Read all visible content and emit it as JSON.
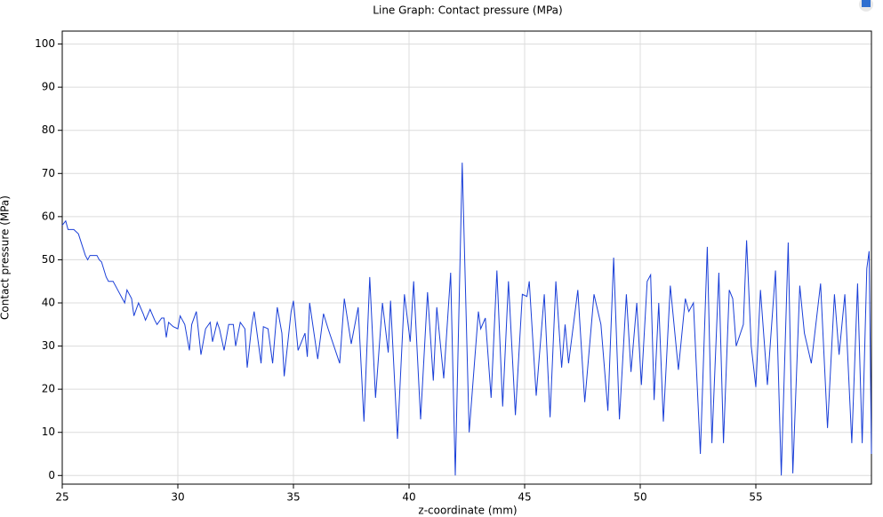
{
  "chart_data": {
    "type": "line",
    "title": "Line Graph: Contact pressure (MPa)",
    "x_label": "z-coordinate (mm)",
    "y_label": "Contact pressure (MPa)",
    "xlim": [
      25,
      60
    ],
    "ylim": [
      -2,
      103
    ],
    "xticks": [
      25,
      30,
      35,
      40,
      45,
      50,
      55
    ],
    "yticks": [
      0,
      10,
      20,
      30,
      40,
      50,
      60,
      70,
      80,
      90,
      100
    ],
    "grid": true,
    "color": "#1a3fd8",
    "x": [
      25.0,
      25.15,
      25.25,
      25.5,
      25.7,
      26.0,
      26.1,
      26.2,
      26.5,
      26.6,
      26.7,
      26.9,
      27.0,
      27.2,
      27.4,
      27.6,
      27.7,
      27.8,
      28.0,
      28.1,
      28.3,
      28.5,
      28.6,
      28.8,
      29.0,
      29.1,
      29.3,
      29.4,
      29.5,
      29.6,
      29.8,
      30.0,
      30.1,
      30.3,
      30.5,
      30.6,
      30.8,
      31.0,
      31.2,
      31.4,
      31.5,
      31.7,
      31.8,
      32.0,
      32.2,
      32.4,
      32.5,
      32.7,
      32.9,
      33.0,
      33.2,
      33.3,
      33.6,
      33.7,
      33.9,
      34.1,
      34.3,
      34.5,
      34.6,
      34.9,
      35.0,
      35.2,
      35.5,
      35.6,
      35.7,
      36.05,
      36.3,
      36.5,
      37.0,
      37.2,
      37.5,
      37.8,
      38.05,
      38.3,
      38.55,
      38.85,
      39.1,
      39.2,
      39.5,
      39.8,
      40.05,
      40.2,
      40.5,
      40.8,
      41.05,
      41.2,
      41.5,
      41.8,
      42.0,
      42.3,
      42.6,
      43.0,
      43.1,
      43.3,
      43.55,
      43.8,
      44.05,
      44.3,
      44.6,
      44.9,
      45.1,
      45.2,
      45.5,
      45.85,
      46.1,
      46.35,
      46.6,
      46.75,
      46.9,
      47.3,
      47.6,
      48.0,
      48.3,
      48.6,
      48.85,
      49.1,
      49.4,
      49.6,
      49.85,
      50.05,
      50.3,
      50.45,
      50.6,
      50.8,
      51.0,
      51.3,
      51.65,
      51.95,
      52.1,
      52.3,
      52.6,
      52.9,
      53.1,
      53.4,
      53.6,
      53.85,
      54.0,
      54.15,
      54.46,
      54.6,
      54.8,
      55.0,
      55.2,
      55.5,
      55.85,
      56.1,
      56.4,
      56.6,
      56.9,
      57.1,
      57.4,
      57.8,
      58.1,
      58.4,
      58.6,
      58.85,
      59.15,
      59.4,
      59.6,
      59.8,
      59.9,
      60.0
    ],
    "values": [
      58,
      59,
      57,
      57,
      56,
      51,
      50,
      51,
      51,
      50,
      49.5,
      46,
      45,
      45,
      43,
      41,
      40,
      43,
      41,
      37,
      40,
      37.5,
      36,
      38.5,
      36,
      35,
      36.5,
      36.5,
      32,
      35.5,
      34.5,
      34,
      37,
      35,
      29,
      35,
      38,
      28,
      34,
      35.5,
      31,
      35.5,
      34,
      29,
      35,
      35,
      30,
      35.5,
      34,
      25,
      35,
      38,
      26,
      34.5,
      34,
      26,
      39,
      33,
      23,
      38,
      40.5,
      29,
      33,
      27.5,
      40,
      27,
      37.5,
      34,
      26,
      41,
      30.5,
      39,
      12.5,
      46,
      18,
      40,
      28.5,
      40.5,
      8.5,
      42,
      31,
      45,
      13,
      42.5,
      22,
      39,
      22.5,
      47,
      0,
      72.5,
      10,
      38,
      34,
      36.5,
      18,
      47.5,
      16,
      45,
      14,
      42,
      41.5,
      45,
      18.5,
      42,
      13.5,
      45,
      25,
      35,
      26,
      43,
      17,
      42,
      35,
      15,
      50.5,
      13,
      42,
      24,
      40,
      21,
      45,
      46.5,
      17.5,
      40,
      12.5,
      44,
      24.5,
      41,
      38,
      40,
      5,
      53,
      7.5,
      47,
      7.5,
      43,
      41,
      30,
      35,
      54.5,
      30,
      20.5,
      43,
      21,
      47.5,
      0,
      54,
      0.5,
      44,
      33,
      26,
      44.5,
      11,
      42,
      28,
      42,
      7.5,
      44.5,
      7.5,
      48,
      52,
      5
    ]
  }
}
